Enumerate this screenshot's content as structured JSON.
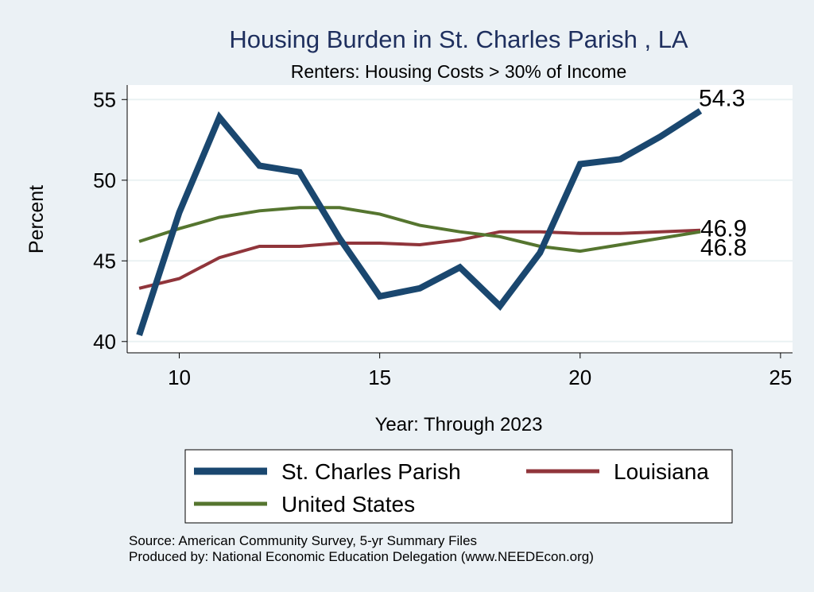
{
  "chart_data": {
    "type": "line",
    "title": "Housing Burden in St. Charles Parish , LA",
    "subtitle": "Renters: Housing Costs > 30% of Income",
    "xlabel": "Year: Through 2023",
    "ylabel": "Percent",
    "xlim": [
      8.7,
      25.3
    ],
    "ylim": [
      39.3,
      55.9
    ],
    "xticks": [
      10,
      15,
      20,
      25
    ],
    "yticks": [
      40,
      45,
      50,
      55
    ],
    "grid": "horizontal",
    "legend_position": "bottom",
    "x": [
      9,
      10,
      11,
      12,
      13,
      14,
      15,
      16,
      17,
      18,
      19,
      20,
      21,
      22,
      23
    ],
    "series": [
      {
        "name": "St. Charles Parish",
        "color": "#1a476f",
        "values": [
          40.4,
          48.0,
          53.9,
          50.9,
          50.5,
          46.4,
          42.8,
          43.3,
          44.6,
          42.2,
          45.5,
          51.0,
          51.3,
          52.7,
          54.3
        ],
        "end_label": "54.3"
      },
      {
        "name": "Louisiana",
        "color": "#90353b",
        "values": [
          43.3,
          43.9,
          45.2,
          45.9,
          45.9,
          46.1,
          46.1,
          46.0,
          46.3,
          46.8,
          46.8,
          46.7,
          46.7,
          46.8,
          46.9
        ],
        "end_label": "46.9"
      },
      {
        "name": "United States",
        "color": "#55752f",
        "values": [
          46.2,
          47.0,
          47.7,
          48.1,
          48.3,
          48.3,
          47.9,
          47.2,
          46.8,
          46.5,
          45.9,
          45.6,
          46.0,
          46.4,
          46.8
        ],
        "end_label": "46.8"
      }
    ]
  },
  "footer": {
    "source": "Source: American Community Survey, 5-yr Summary Files",
    "produced": "Produced by: National Economic Education Delegation (www.NEEDEcon.org)"
  }
}
